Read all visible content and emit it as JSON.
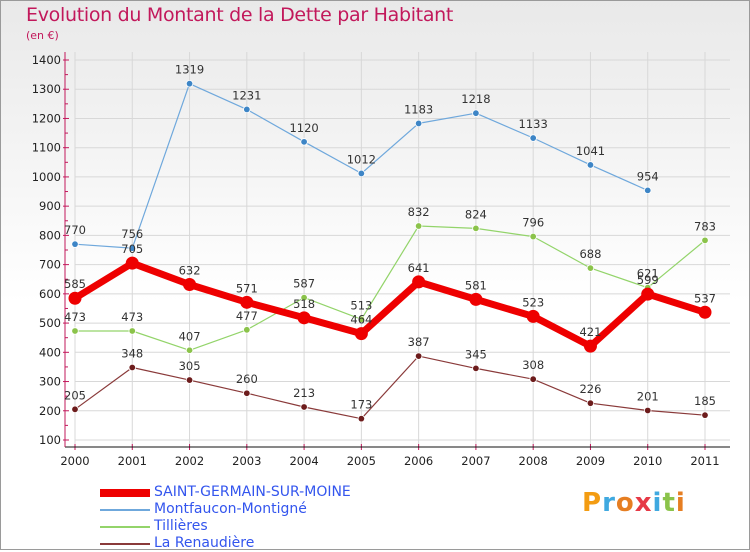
{
  "title": "Evolution du Montant de la Dette par Habitant",
  "subtitle": "(en €)",
  "logo": {
    "text": "Proxiti",
    "colors": [
      "#f39c12",
      "#3fa9e0",
      "#e67e22",
      "#e63946",
      "#3fa9e0",
      "#8bc34a",
      "#e67e22"
    ]
  },
  "colors": {
    "title": "#c2185b",
    "axis": "#000000",
    "grid": "#d8d8d8",
    "label": "#333333"
  },
  "chart_data": {
    "type": "line",
    "title": "Evolution du Montant de la Dette par Habitant",
    "subtitle": "(en €)",
    "x": [
      "2000",
      "2001",
      "2002",
      "2003",
      "2004",
      "2005",
      "2006",
      "2007",
      "2008",
      "2009",
      "2010",
      "2011"
    ],
    "yticks": [
      "100",
      "200",
      "300",
      "400",
      "500",
      "600",
      "700",
      "800",
      "900",
      "1000",
      "1100",
      "1200",
      "1300",
      "1400"
    ],
    "ylim": [
      100,
      1400
    ],
    "grid": true,
    "legend_position": "bottom-left",
    "series": [
      {
        "name": "SAINT-GERMAIN-SUR-MOINE",
        "color": "#ee0000",
        "width": 7,
        "marker": 6.5,
        "values": [
          585,
          705,
          632,
          571,
          518,
          464,
          641,
          581,
          523,
          421,
          599,
          537
        ]
      },
      {
        "name": "Montfaucon-Montigné",
        "color": "#6fa8dc",
        "width": 1.2,
        "marker": 3.3,
        "marker_color": "#3d85c6",
        "values": [
          770,
          756,
          1319,
          1231,
          1120,
          1012,
          1183,
          1218,
          1133,
          1041,
          954,
          null
        ]
      },
      {
        "name": "Tillières",
        "color": "#93d46a",
        "width": 1.2,
        "marker": 3.3,
        "marker_color": "#8bc34a",
        "values": [
          473,
          473,
          407,
          477,
          587,
          513,
          832,
          824,
          796,
          688,
          621,
          783
        ]
      },
      {
        "name": "La Renaudière",
        "color": "#8a3a3a",
        "width": 1.2,
        "marker": 3.3,
        "marker_color": "#6d1c1c",
        "values": [
          205,
          348,
          305,
          260,
          213,
          173,
          387,
          345,
          308,
          226,
          201,
          185
        ]
      }
    ]
  }
}
